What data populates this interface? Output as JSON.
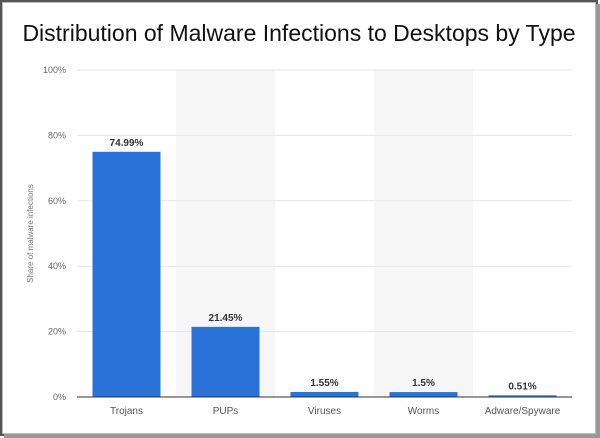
{
  "chart_data": {
    "type": "bar",
    "title": "Distribution of Malware Infections to Desktops by Type",
    "xlabel": "",
    "ylabel": "Share of malware infections",
    "categories": [
      "Trojans",
      "PUPs",
      "Viruses",
      "Worms",
      "Adware/Spyware"
    ],
    "values": [
      74.99,
      21.45,
      1.55,
      1.5,
      0.51
    ],
    "data_labels": [
      "74.99%",
      "21.45%",
      "1.55%",
      "1.5%",
      "0.51%"
    ],
    "ylim": [
      0,
      100
    ],
    "yticks": [
      "0%",
      "20%",
      "40%",
      "60%",
      "80%",
      "100%"
    ],
    "grid": true,
    "bar_color": "#2a72d8"
  }
}
